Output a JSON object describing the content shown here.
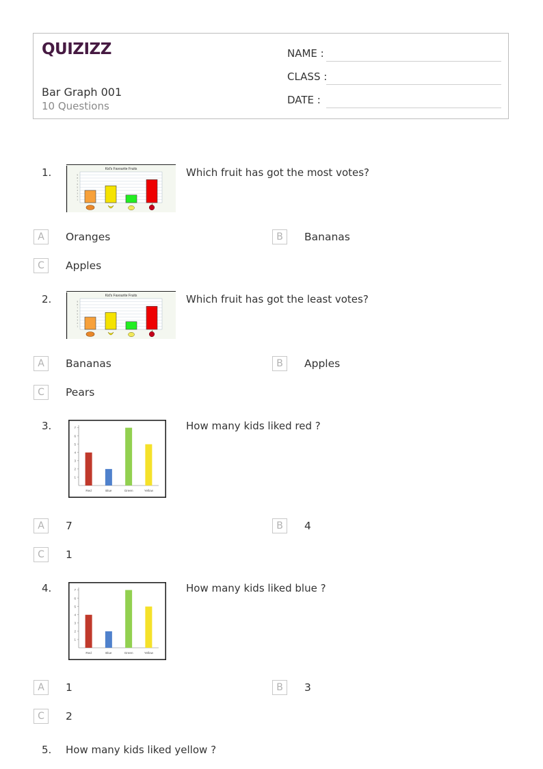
{
  "header": {
    "logo": "QUIZIZZ",
    "title": "Bar Graph 001",
    "subtitle": "10 Questions",
    "fields": [
      "NAME :",
      "CLASS :",
      "DATE  :"
    ]
  },
  "questions": [
    {
      "number": "1.",
      "text": "Which fruit has got the most votes?",
      "options": [
        {
          "letter": "A",
          "text": "Oranges"
        },
        {
          "letter": "B",
          "text": "Bananas"
        },
        {
          "letter": "C",
          "text": "Apples"
        }
      ]
    },
    {
      "number": "2.",
      "text": "Which fruit has got the least votes?",
      "options": [
        {
          "letter": "A",
          "text": "Bananas"
        },
        {
          "letter": "B",
          "text": "Apples"
        },
        {
          "letter": "C",
          "text": "Pears"
        }
      ]
    },
    {
      "number": "3.",
      "text": "How many kids liked red ?",
      "options": [
        {
          "letter": "A",
          "text": "7"
        },
        {
          "letter": "B",
          "text": "4"
        },
        {
          "letter": "C",
          "text": "1"
        }
      ]
    },
    {
      "number": "4.",
      "text": "How many kids liked blue ?",
      "options": [
        {
          "letter": "A",
          "text": "1"
        },
        {
          "letter": "B",
          "text": "3"
        },
        {
          "letter": "C",
          "text": "2"
        }
      ]
    },
    {
      "number": "5.",
      "text": "How many kids liked yellow ?"
    }
  ],
  "chart_data": [
    {
      "type": "bar",
      "title": "Kid's Favourite Fruits",
      "categories": [
        "Oranges",
        "Bananas",
        "Pears",
        "Apples"
      ],
      "values": [
        4,
        5.5,
        2.5,
        7.5
      ],
      "colors": [
        "#f7a13b",
        "#f5e300",
        "#22ee22",
        "#ee0000"
      ],
      "icons": [
        "orange-icon",
        "banana-icon",
        "pear-icon",
        "apple-icon"
      ],
      "ylim": [
        0,
        10
      ],
      "grid": true
    },
    {
      "type": "bar",
      "title": "Kid's Favourite Fruits",
      "categories": [
        "Oranges",
        "Bananas",
        "Pears",
        "Apples"
      ],
      "values": [
        4,
        5.5,
        2.5,
        7.5
      ],
      "colors": [
        "#f7a13b",
        "#f5e300",
        "#22ee22",
        "#ee0000"
      ],
      "icons": [
        "orange-icon",
        "banana-icon",
        "pear-icon",
        "apple-icon"
      ],
      "ylim": [
        0,
        10
      ],
      "grid": true
    },
    {
      "type": "bar",
      "categories": [
        "Red",
        "Blue",
        "Green",
        "Yellow"
      ],
      "values": [
        4,
        2,
        7,
        5
      ],
      "colors": [
        "#c0392b",
        "#4f81cc",
        "#92d050",
        "#f5e12a"
      ],
      "yticks": [
        "1",
        "2",
        "3",
        "4",
        "5",
        "6",
        "7"
      ],
      "ylim": [
        0,
        7.3
      ],
      "grid": false
    },
    {
      "type": "bar",
      "categories": [
        "Red",
        "Blue",
        "Green",
        "Yellow"
      ],
      "values": [
        4,
        2,
        7,
        5
      ],
      "colors": [
        "#c0392b",
        "#4f81cc",
        "#92d050",
        "#f5e12a"
      ],
      "yticks": [
        "1",
        "2",
        "3",
        "4",
        "5",
        "6",
        "7"
      ],
      "ylim": [
        0,
        7.3
      ],
      "grid": false
    }
  ]
}
